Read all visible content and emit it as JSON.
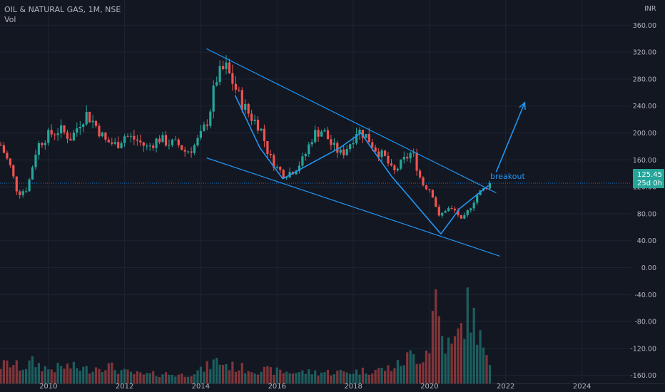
{
  "header": {
    "title": "OIL & NATURAL GAS, 1M, NSE",
    "vol_label": "Vol"
  },
  "axis": {
    "currency": "INR"
  },
  "price_tag": {
    "price": "125.45",
    "countdown": "25d 0h"
  },
  "annotation": {
    "breakout": "breakout"
  },
  "colors": {
    "background": "#131722",
    "up": "#26a69a",
    "down": "#ef5350",
    "drawing": "#2196f3",
    "axis_text": "#b2b5be"
  },
  "chart_data": {
    "type": "candlestick",
    "x_ticks": [
      2010,
      2012,
      2014,
      2016,
      2018,
      2020,
      2022,
      2024
    ],
    "y_ticks": [
      -160,
      -120,
      -80,
      -40,
      0,
      40,
      80,
      120,
      160,
      200,
      240,
      280,
      320,
      360
    ],
    "ylim": [
      -172,
      372
    ],
    "xlim": [
      2008.75,
      2025.3
    ],
    "last_price": 125.45,
    "price_points": [
      [
        2008.75,
        182
      ],
      [
        2009.0,
        150
      ],
      [
        2009.2,
        110
      ],
      [
        2009.45,
        118
      ],
      [
        2009.7,
        180
      ],
      [
        2009.95,
        195
      ],
      [
        2010.3,
        205
      ],
      [
        2010.6,
        192
      ],
      [
        2010.85,
        218
      ],
      [
        2011.0,
        228
      ],
      [
        2011.2,
        215
      ],
      [
        2011.5,
        188
      ],
      [
        2011.8,
        182
      ],
      [
        2012.0,
        196
      ],
      [
        2012.3,
        190
      ],
      [
        2012.6,
        178
      ],
      [
        2012.9,
        192
      ],
      [
        2013.1,
        186
      ],
      [
        2013.4,
        183
      ],
      [
        2013.6,
        172
      ],
      [
        2013.8,
        178
      ],
      [
        2014.0,
        196
      ],
      [
        2014.2,
        222
      ],
      [
        2014.4,
        280
      ],
      [
        2014.65,
        298
      ],
      [
        2014.85,
        274
      ],
      [
        2015.1,
        242
      ],
      [
        2015.3,
        225
      ],
      [
        2015.55,
        210
      ],
      [
        2015.8,
        165
      ],
      [
        2016.0,
        148
      ],
      [
        2016.2,
        138
      ],
      [
        2016.45,
        145
      ],
      [
        2016.7,
        162
      ],
      [
        2016.95,
        198
      ],
      [
        2017.2,
        205
      ],
      [
        2017.45,
        180
      ],
      [
        2017.7,
        168
      ],
      [
        2017.95,
        188
      ],
      [
        2018.1,
        205
      ],
      [
        2018.35,
        195
      ],
      [
        2018.6,
        175
      ],
      [
        2018.85,
        162
      ],
      [
        2019.05,
        140
      ],
      [
        2019.3,
        158
      ],
      [
        2019.55,
        172
      ],
      [
        2019.8,
        125
      ],
      [
        2020.05,
        115
      ],
      [
        2020.25,
        75
      ],
      [
        2020.45,
        88
      ],
      [
        2020.7,
        84
      ],
      [
        2020.85,
        68
      ],
      [
        2021.05,
        88
      ],
      [
        2021.25,
        108
      ],
      [
        2021.45,
        118
      ],
      [
        2021.55,
        125.45
      ]
    ],
    "volume_points": [
      [
        2008.75,
        2.5
      ],
      [
        2009.0,
        2.8
      ],
      [
        2009.3,
        2.2
      ],
      [
        2009.6,
        3.0
      ],
      [
        2010.0,
        2.0
      ],
      [
        2010.5,
        2.4
      ],
      [
        2011.0,
        2.0
      ],
      [
        2011.5,
        2.6
      ],
      [
        2012.0,
        1.6
      ],
      [
        2012.5,
        1.2
      ],
      [
        2013.0,
        1.4
      ],
      [
        2013.5,
        1.2
      ],
      [
        2014.0,
        1.8
      ],
      [
        2014.4,
        3.2
      ],
      [
        2014.8,
        2.4
      ],
      [
        2015.3,
        2.0
      ],
      [
        2015.8,
        1.8
      ],
      [
        2016.3,
        1.6
      ],
      [
        2016.8,
        1.6
      ],
      [
        2017.3,
        1.6
      ],
      [
        2017.8,
        1.6
      ],
      [
        2018.3,
        1.8
      ],
      [
        2018.8,
        2.0
      ],
      [
        2019.2,
        2.6
      ],
      [
        2019.5,
        4.0
      ],
      [
        2019.8,
        3.6
      ],
      [
        2020.0,
        5.5
      ],
      [
        2020.15,
        13.0
      ],
      [
        2020.35,
        6.0
      ],
      [
        2020.6,
        5.0
      ],
      [
        2020.85,
        8.0
      ],
      [
        2021.0,
        10.5
      ],
      [
        2021.2,
        8.5
      ],
      [
        2021.4,
        5.0
      ],
      [
        2021.55,
        2.2
      ]
    ],
    "drawings": {
      "channel_upper": [
        [
          2014.15,
          325
        ],
        [
          2021.75,
          111
        ]
      ],
      "channel_lower": [
        [
          2014.15,
          163
        ],
        [
          2021.85,
          17
        ]
      ],
      "wave_path": [
        [
          2014.9,
          256
        ],
        [
          2015.55,
          178
        ],
        [
          2016.15,
          132
        ],
        [
          2017.65,
          178
        ],
        [
          2018.2,
          200
        ],
        [
          2019.0,
          136
        ],
        [
          2020.3,
          50
        ],
        [
          2020.8,
          88
        ],
        [
          2021.55,
          122
        ]
      ],
      "projection_arrow": [
        [
          2021.75,
          142
        ],
        [
          2022.5,
          245
        ]
      ]
    }
  }
}
